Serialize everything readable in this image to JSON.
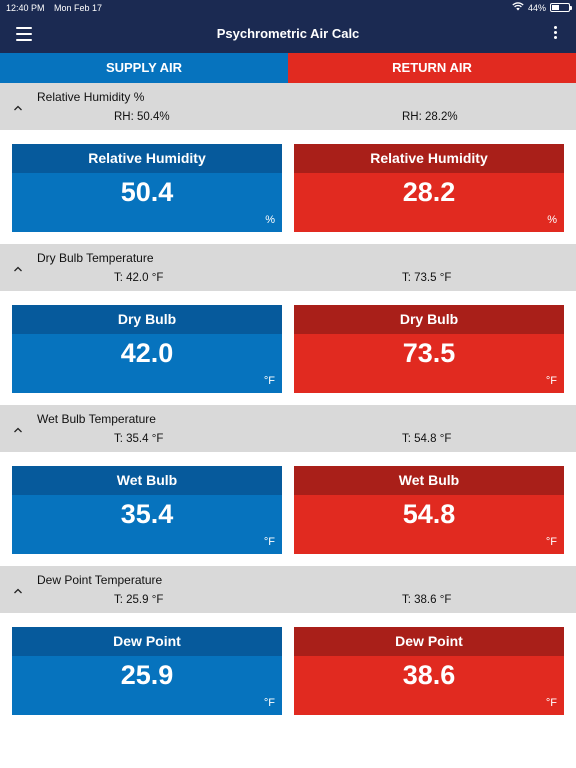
{
  "status_bar": {
    "time": "12:40 PM",
    "date": "Mon Feb 17",
    "battery": "44%",
    "battery_level": 0.44
  },
  "nav": {
    "title": "Psychrometric Air Calc",
    "menu_icon": "hamburger-menu-icon",
    "more_icon": "more-vertical-icon"
  },
  "tabs": {
    "supply": "SUPPLY AIR",
    "return": "RETURN AIR"
  },
  "sections": [
    {
      "title": "Relative Humidity %",
      "supply_summary": "RH: 50.4%",
      "return_summary": "RH: 28.2%",
      "supply_card": {
        "label": "Relative Humidity",
        "value": "50.4",
        "unit": "%"
      },
      "return_card": {
        "label": "Relative Humidity",
        "value": "28.2",
        "unit": "%"
      }
    },
    {
      "title": "Dry Bulb Temperature",
      "supply_summary": "T: 42.0 °F",
      "return_summary": "T: 73.5 °F",
      "supply_card": {
        "label": "Dry Bulb",
        "value": "42.0",
        "unit": "°F"
      },
      "return_card": {
        "label": "Dry Bulb",
        "value": "73.5",
        "unit": "°F"
      }
    },
    {
      "title": "Wet Bulb Temperature",
      "supply_summary": "T: 35.4 °F",
      "return_summary": "T: 54.8 °F",
      "supply_card": {
        "label": "Wet Bulb",
        "value": "35.4",
        "unit": "°F"
      },
      "return_card": {
        "label": "Wet Bulb",
        "value": "54.8",
        "unit": "°F"
      }
    },
    {
      "title": "Dew Point Temperature",
      "supply_summary": "T: 25.9 °F",
      "return_summary": "T: 38.6 °F",
      "supply_card": {
        "label": "Dew Point",
        "value": "25.9",
        "unit": "°F"
      },
      "return_card": {
        "label": "Dew Point",
        "value": "38.6",
        "unit": "°F"
      }
    }
  ],
  "colors": {
    "nav_bg": "#1b2a52",
    "supply": "#0673be",
    "supply_dark": "#065a9c",
    "return": "#e12a20",
    "return_dark": "#a91f19",
    "section_bg": "#d9d9d9"
  }
}
